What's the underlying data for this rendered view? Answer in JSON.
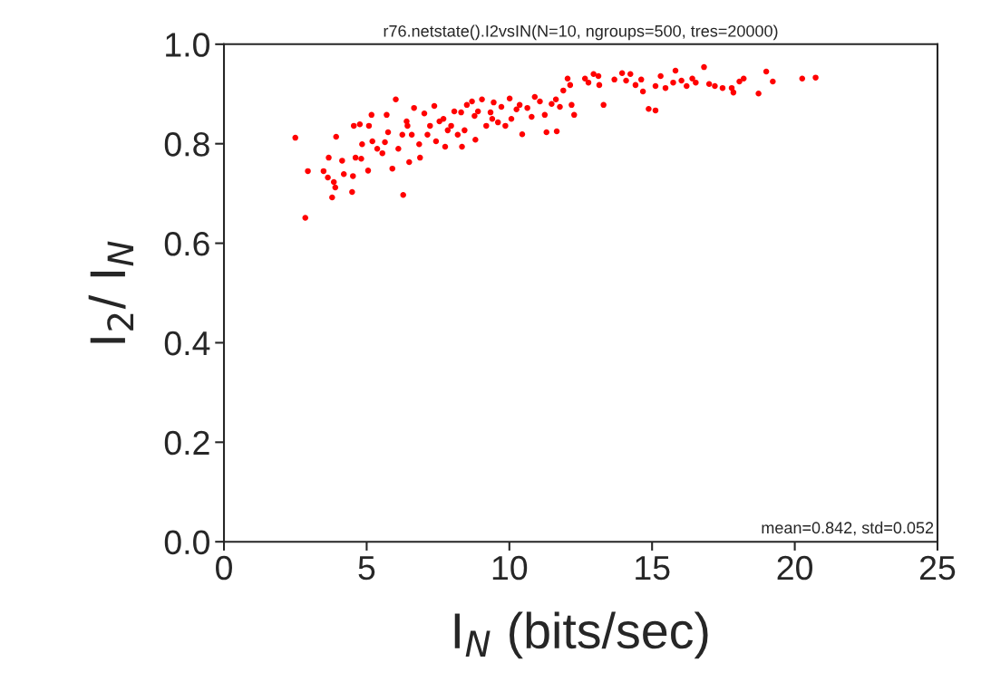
{
  "chart_data": {
    "type": "scatter",
    "title": "r76.netstate().I2vsIN(N=10, ngroups=500, tres=20000)",
    "xlabel": "I$_{N}$ (bits/sec)",
    "ylabel": "I$_{2}$/ I$_{N}$",
    "xlim": [
      0,
      25
    ],
    "xticks": [
      0,
      5,
      10,
      15,
      20,
      25
    ],
    "ylim": [
      0,
      1
    ],
    "yticks": [
      {
        "value": 0,
        "label": "0.0"
      },
      {
        "value": 0.2,
        "label": "0.2"
      },
      {
        "value": 0.4,
        "label": "0.4"
      },
      {
        "value": 0.6,
        "label": "0.6"
      },
      {
        "value": 0.8,
        "label": "0.8"
      },
      {
        "value": 1,
        "label": "1.0"
      }
    ],
    "grid": false,
    "marker": "circle",
    "annotations": [
      "mean=0.842, std=0.052"
    ],
    "series": [
      {
        "color": "#ff0000",
        "x": [
          2.5,
          2.85,
          2.94,
          3.49,
          3.64,
          3.67,
          3.85,
          3.79,
          3.9,
          3.93,
          4.14,
          4.2,
          4.49,
          4.52,
          4.61,
          4.55,
          4.76,
          4.81,
          4.84,
          5.05,
          5.08,
          5.17,
          5.2,
          5.37,
          5.55,
          5.64,
          5.7,
          5.75,
          5.9,
          6.02,
          6.11,
          6.25,
          6.28,
          6.4,
          6.43,
          6.49,
          6.58,
          6.66,
          6.84,
          6.87,
          7.02,
          7.13,
          7.22,
          7.37,
          7.43,
          7.55,
          7.69,
          7.75,
          7.84,
          7.96,
          8.07,
          8.19,
          8.31,
          8.34,
          8.43,
          8.51,
          8.69,
          8.78,
          8.81,
          8.9,
          9.04,
          9.19,
          9.34,
          9.4,
          9.45,
          9.6,
          9.72,
          9.86,
          10.01,
          10.07,
          10.25,
          10.36,
          10.45,
          10.63,
          10.78,
          10.89,
          11.07,
          11.24,
          11.3,
          11.48,
          11.63,
          11.66,
          11.77,
          11.89,
          12.04,
          12.13,
          12.18,
          12.27,
          12.65,
          12.77,
          12.95,
          13.12,
          13.15,
          13.3,
          13.68,
          13.95,
          14.09,
          14.24,
          14.42,
          14.62,
          14.68,
          14.88,
          15.12,
          15.12,
          15.3,
          15.47,
          15.74,
          15.82,
          16.03,
          16.21,
          16.41,
          16.53,
          16.82,
          17.0,
          17.2,
          17.47,
          17.79,
          17.85,
          18.06,
          18.21,
          18.73,
          19.0,
          19.23,
          20.26,
          20.73
        ],
        "values": [
          0.812,
          0.651,
          0.745,
          0.745,
          0.732,
          0.772,
          0.723,
          0.692,
          0.712,
          0.814,
          0.766,
          0.739,
          0.703,
          0.735,
          0.772,
          0.836,
          0.839,
          0.77,
          0.799,
          0.746,
          0.836,
          0.858,
          0.805,
          0.79,
          0.781,
          0.803,
          0.858,
          0.823,
          0.75,
          0.889,
          0.79,
          0.818,
          0.697,
          0.845,
          0.836,
          0.763,
          0.818,
          0.872,
          0.799,
          0.772,
          0.861,
          0.818,
          0.836,
          0.876,
          0.805,
          0.845,
          0.85,
          0.794,
          0.827,
          0.836,
          0.865,
          0.818,
          0.863,
          0.794,
          0.827,
          0.878,
          0.885,
          0.856,
          0.808,
          0.865,
          0.889,
          0.836,
          0.863,
          0.85,
          0.883,
          0.843,
          0.874,
          0.836,
          0.891,
          0.85,
          0.869,
          0.878,
          0.819,
          0.872,
          0.854,
          0.894,
          0.885,
          0.858,
          0.823,
          0.88,
          0.889,
          0.825,
          0.874,
          0.907,
          0.931,
          0.918,
          0.878,
          0.858,
          0.931,
          0.923,
          0.94,
          0.936,
          0.918,
          0.878,
          0.929,
          0.942,
          0.927,
          0.94,
          0.918,
          0.929,
          0.905,
          0.87,
          0.867,
          0.916,
          0.936,
          0.912,
          0.923,
          0.947,
          0.927,
          0.916,
          0.931,
          0.923,
          0.954,
          0.92,
          0.916,
          0.912,
          0.912,
          0.903,
          0.925,
          0.931,
          0.901,
          0.945,
          0.925,
          0.931,
          0.933
        ]
      }
    ]
  }
}
